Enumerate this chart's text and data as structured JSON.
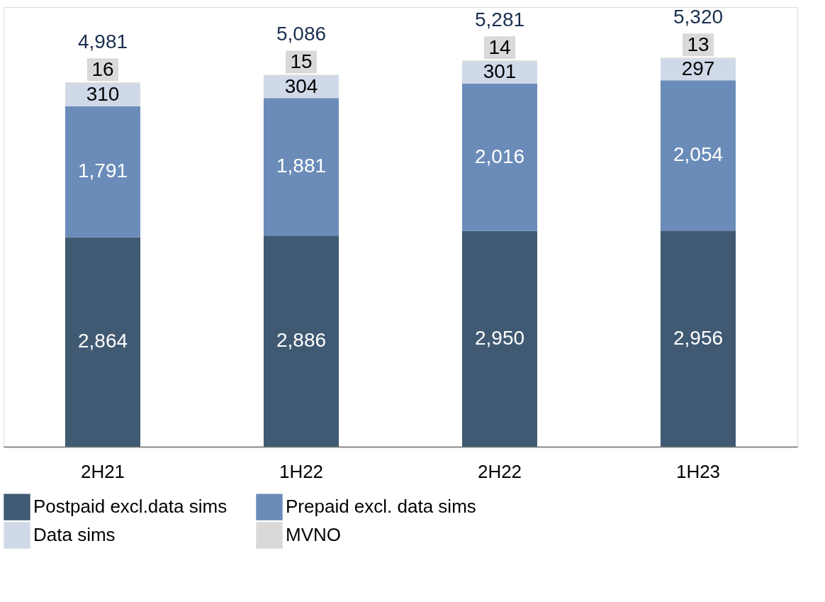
{
  "chart_data": {
    "type": "bar",
    "stacked": true,
    "legend": "bottom",
    "grid": false,
    "categories": [
      "2H21",
      "1H22",
      "2H22",
      "1H23"
    ],
    "series": [
      {
        "name": "Postpaid excl.data sims",
        "color": "#415a73",
        "values": [
          2864,
          2886,
          2950,
          2956
        ],
        "value_labels": [
          "2,864",
          "2,886",
          "2,950",
          "2,956"
        ]
      },
      {
        "name": "Prepaid excl. data sims",
        "color": "#6b8cb9",
        "values": [
          1791,
          1881,
          2016,
          2054
        ],
        "value_labels": [
          "1,791",
          "1,881",
          "2,016",
          "2,054"
        ]
      },
      {
        "name": "Data sims",
        "color": "#cfd9e8",
        "values": [
          310,
          304,
          301,
          297
        ],
        "value_labels": [
          "310",
          "304",
          "301",
          "297"
        ]
      },
      {
        "name": "MVNO",
        "color": "#d9d9d9",
        "values": [
          16,
          15,
          14,
          13
        ],
        "value_labels": [
          "16",
          "15",
          "14",
          "13"
        ]
      }
    ],
    "totals": [
      "4,981",
      "5,086",
      "5,281",
      "5,320"
    ]
  }
}
